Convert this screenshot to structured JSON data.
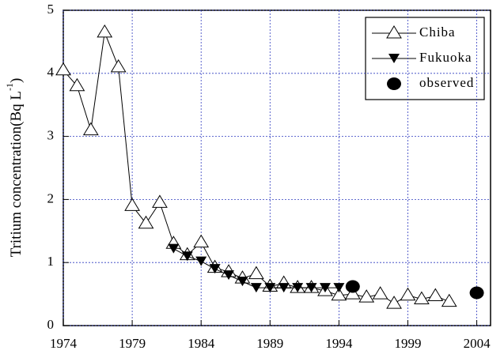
{
  "chart_data": {
    "type": "line",
    "y_label": "Tritium concentration(Bq L",
    "y_label_superscript": "-1",
    "y_label_suffix": ")",
    "xlim": [
      1974,
      2005
    ],
    "xticks": [
      1974,
      1979,
      1984,
      1989,
      1994,
      1999,
      2004
    ],
    "ylim": [
      0,
      5
    ],
    "yticks": [
      0,
      1,
      2,
      3,
      4,
      5
    ],
    "grid": true,
    "legend": "upper right",
    "series": [
      {
        "name": "Chiba",
        "color": "#000000",
        "marker": "triangle-open",
        "line": true,
        "x": [
          1974,
          1975,
          1976,
          1977,
          1978,
          1979,
          1980,
          1981,
          1982,
          1983,
          1984,
          1985,
          1986,
          1987,
          1988,
          1989,
          1990,
          1991,
          1992,
          1993,
          1994,
          1995,
          1996,
          1997,
          1998,
          1999,
          2000,
          2001,
          2002
        ],
        "values": [
          4.05,
          3.8,
          3.1,
          4.65,
          4.1,
          1.9,
          1.62,
          1.95,
          1.3,
          1.12,
          1.32,
          0.92,
          0.85,
          0.75,
          0.82,
          0.62,
          0.67,
          0.6,
          0.6,
          0.55,
          0.48,
          0.5,
          0.45,
          0.5,
          0.35,
          0.48,
          0.42,
          0.47,
          0.38
        ]
      },
      {
        "name": "Fukuoka",
        "color": "#000000",
        "marker": "triangle-down",
        "line": true,
        "x": [
          1982,
          1983,
          1984,
          1985,
          1986,
          1987,
          1988,
          1989,
          1990,
          1991,
          1992,
          1993,
          1994
        ],
        "values": [
          1.22,
          1.1,
          1.02,
          0.9,
          0.8,
          0.7,
          0.6,
          0.6,
          0.6,
          0.6,
          0.6,
          0.6,
          0.6
        ]
      },
      {
        "name": "observed",
        "color": "#000000",
        "marker": "circle",
        "line": false,
        "x": [
          1995,
          2004
        ],
        "values": [
          0.62,
          0.52
        ]
      }
    ]
  }
}
